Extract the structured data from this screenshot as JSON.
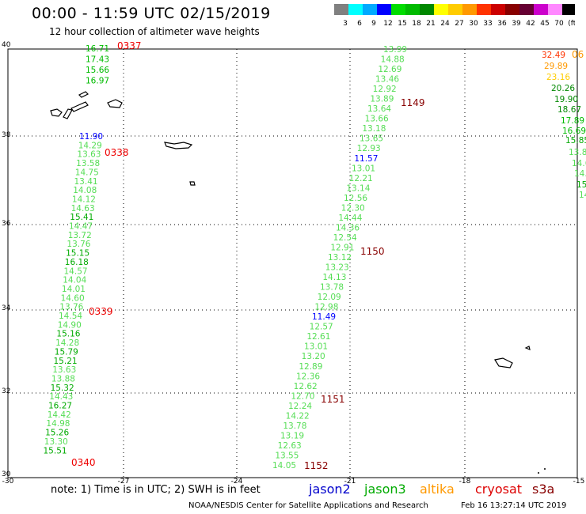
{
  "title": "00:00 - 11:59 UTC 02/15/2019",
  "subtitle": "12 hour collection of altimeter wave heights",
  "scale": {
    "labels": [
      "3",
      "6",
      "9",
      "12",
      "15",
      "18",
      "21",
      "24",
      "27",
      "30",
      "33",
      "36",
      "39",
      "42",
      "45",
      "70",
      "(ft)"
    ],
    "colors": [
      "#808080",
      "#00ffff",
      "#00aaff",
      "#0000ff",
      "#00dd00",
      "#00bb00",
      "#008800",
      "#ffff00",
      "#ffcc00",
      "#ff9900",
      "#ff3300",
      "#cc0000",
      "#880000",
      "#660033",
      "#cc00cc",
      "#ff88ff",
      "#000000"
    ]
  },
  "lat_labels": [
    "40",
    "38",
    "36",
    "34",
    "32",
    "30"
  ],
  "lon_labels": [
    "-30",
    "-27",
    "-24",
    "-21",
    "-18",
    "-15"
  ],
  "tracks": [
    {
      "time": "0337",
      "values": [
        {
          "v": "16.71",
          "c": "#00bb00"
        },
        {
          "v": "17.43",
          "c": "#00bb00"
        },
        {
          "v": "15.66",
          "c": "#00bb00"
        },
        {
          "v": "16.97",
          "c": "#00bb00"
        },
        {
          "v": "11.90",
          "c": "#0000ff"
        },
        {
          "v": "14.29",
          "c": "#55dd55"
        },
        {
          "v": "13.63",
          "c": "#55dd55"
        },
        {
          "v": "13.58",
          "c": "#55dd55"
        },
        {
          "v": "14.75",
          "c": "#55dd55"
        },
        {
          "v": "13.41",
          "c": "#55dd55"
        },
        {
          "v": "14.08",
          "c": "#55dd55"
        },
        {
          "v": "14.12",
          "c": "#55dd55"
        },
        {
          "v": "14.63",
          "c": "#55dd55"
        },
        {
          "v": "15.41",
          "c": "#00aa00"
        },
        {
          "v": "14.47",
          "c": "#55dd55"
        },
        {
          "v": "13.72",
          "c": "#55dd55"
        },
        {
          "v": "13.76",
          "c": "#55dd55"
        },
        {
          "v": "15.15",
          "c": "#00aa00"
        },
        {
          "v": "16.18",
          "c": "#00aa00"
        },
        {
          "v": "14.57",
          "c": "#55dd55"
        },
        {
          "v": "14.04",
          "c": "#55dd55"
        },
        {
          "v": "14.01",
          "c": "#55dd55"
        },
        {
          "v": "14.60",
          "c": "#55dd55"
        },
        {
          "v": "13.76",
          "c": "#55dd55"
        },
        {
          "v": "14.54",
          "c": "#55dd55"
        },
        {
          "v": "14.90",
          "c": "#55dd55"
        },
        {
          "v": "15.16",
          "c": "#00aa00"
        },
        {
          "v": "14.28",
          "c": "#55dd55"
        },
        {
          "v": "15.79",
          "c": "#00aa00"
        },
        {
          "v": "15.21",
          "c": "#00aa00"
        },
        {
          "v": "13.63",
          "c": "#55dd55"
        },
        {
          "v": "13.88",
          "c": "#55dd55"
        },
        {
          "v": "15.32",
          "c": "#00aa00"
        },
        {
          "v": "14.43",
          "c": "#55dd55"
        },
        {
          "v": "16.27",
          "c": "#00aa00"
        },
        {
          "v": "14.42",
          "c": "#55dd55"
        },
        {
          "v": "14.98",
          "c": "#55dd55"
        },
        {
          "v": "15.26",
          "c": "#00aa00"
        },
        {
          "v": "13.30",
          "c": "#55dd55"
        },
        {
          "v": "15.51",
          "c": "#00aa00"
        }
      ],
      "time_labels": [
        "0337",
        "0338",
        "0339",
        "0340"
      ]
    },
    {
      "time": "1149",
      "values": [
        {
          "v": "13.99",
          "c": "#55dd55"
        },
        {
          "v": "14.88",
          "c": "#55dd55"
        },
        {
          "v": "12.69",
          "c": "#55dd55"
        },
        {
          "v": "13.46",
          "c": "#55dd55"
        },
        {
          "v": "12.92",
          "c": "#55dd55"
        },
        {
          "v": "13.89",
          "c": "#55dd55"
        },
        {
          "v": "13.64",
          "c": "#55dd55"
        },
        {
          "v": "13.66",
          "c": "#55dd55"
        },
        {
          "v": "13.18",
          "c": "#55dd55"
        },
        {
          "v": "13.65",
          "c": "#55dd55"
        },
        {
          "v": "12.93",
          "c": "#55dd55"
        },
        {
          "v": "11.57",
          "c": "#0000ff"
        },
        {
          "v": "13.01",
          "c": "#55dd55"
        },
        {
          "v": "12.21",
          "c": "#55dd55"
        },
        {
          "v": "13.14",
          "c": "#55dd55"
        },
        {
          "v": "12.56",
          "c": "#55dd55"
        },
        {
          "v": "12.30",
          "c": "#55dd55"
        },
        {
          "v": "14.44",
          "c": "#55dd55"
        },
        {
          "v": "14.36",
          "c": "#55dd55"
        },
        {
          "v": "12.54",
          "c": "#55dd55"
        },
        {
          "v": "12.91",
          "c": "#55dd55"
        },
        {
          "v": "13.12",
          "c": "#55dd55"
        },
        {
          "v": "13.23",
          "c": "#55dd55"
        },
        {
          "v": "14.13",
          "c": "#55dd55"
        },
        {
          "v": "13.78",
          "c": "#55dd55"
        },
        {
          "v": "12.09",
          "c": "#55dd55"
        },
        {
          "v": "12.98",
          "c": "#55dd55"
        },
        {
          "v": "11.49",
          "c": "#0000ff"
        },
        {
          "v": "12.57",
          "c": "#55dd55"
        },
        {
          "v": "12.61",
          "c": "#55dd55"
        },
        {
          "v": "13.01",
          "c": "#55dd55"
        },
        {
          "v": "13.20",
          "c": "#55dd55"
        },
        {
          "v": "12.89",
          "c": "#55dd55"
        },
        {
          "v": "12.36",
          "c": "#55dd55"
        },
        {
          "v": "12.62",
          "c": "#55dd55"
        },
        {
          "v": "12.70",
          "c": "#55dd55"
        },
        {
          "v": "12.24",
          "c": "#55dd55"
        },
        {
          "v": "14.22",
          "c": "#55dd55"
        },
        {
          "v": "13.78",
          "c": "#55dd55"
        },
        {
          "v": "13.19",
          "c": "#55dd55"
        },
        {
          "v": "12.63",
          "c": "#55dd55"
        },
        {
          "v": "13.55",
          "c": "#55dd55"
        },
        {
          "v": "14.05",
          "c": "#55dd55"
        }
      ],
      "time_labels": [
        "1149",
        "1150",
        "1151",
        "1152"
      ]
    },
    {
      "time": "06",
      "values": [
        {
          "v": "32.49",
          "c": "#ff3300"
        },
        {
          "v": "29.89",
          "c": "#ff9900"
        },
        {
          "v": "23.16",
          "c": "#ffcc00"
        },
        {
          "v": "20.26",
          "c": "#008800"
        },
        {
          "v": "19.90",
          "c": "#008800"
        },
        {
          "v": "18.67",
          "c": "#008800"
        },
        {
          "v": "17.89",
          "c": "#00bb00"
        },
        {
          "v": "16.69",
          "c": "#00bb00"
        },
        {
          "v": "15.85",
          "c": "#00aa00"
        },
        {
          "v": "13.8",
          "c": "#55dd55"
        },
        {
          "v": "14.6",
          "c": "#55dd55"
        },
        {
          "v": "14.",
          "c": "#55dd55"
        },
        {
          "v": "15",
          "c": "#00aa00"
        },
        {
          "v": "14",
          "c": "#55dd55"
        }
      ],
      "time_labels": [
        "06"
      ]
    }
  ],
  "note": "note: 1) Time is in UTC; 2) SWH is in feet",
  "legend": [
    {
      "name": "jason2",
      "color": "#0000cc"
    },
    {
      "name": "jason3",
      "color": "#00aa00"
    },
    {
      "name": "altika",
      "color": "#ff9900"
    },
    {
      "name": "cryosat",
      "color": "#dd0000"
    },
    {
      "name": "s3a",
      "color": "#880000"
    }
  ],
  "credit": "NOAA/NESDIS Center for Satellite Applications and Research",
  "generated": "Feb 16 13:27:14 UTC 2019"
}
